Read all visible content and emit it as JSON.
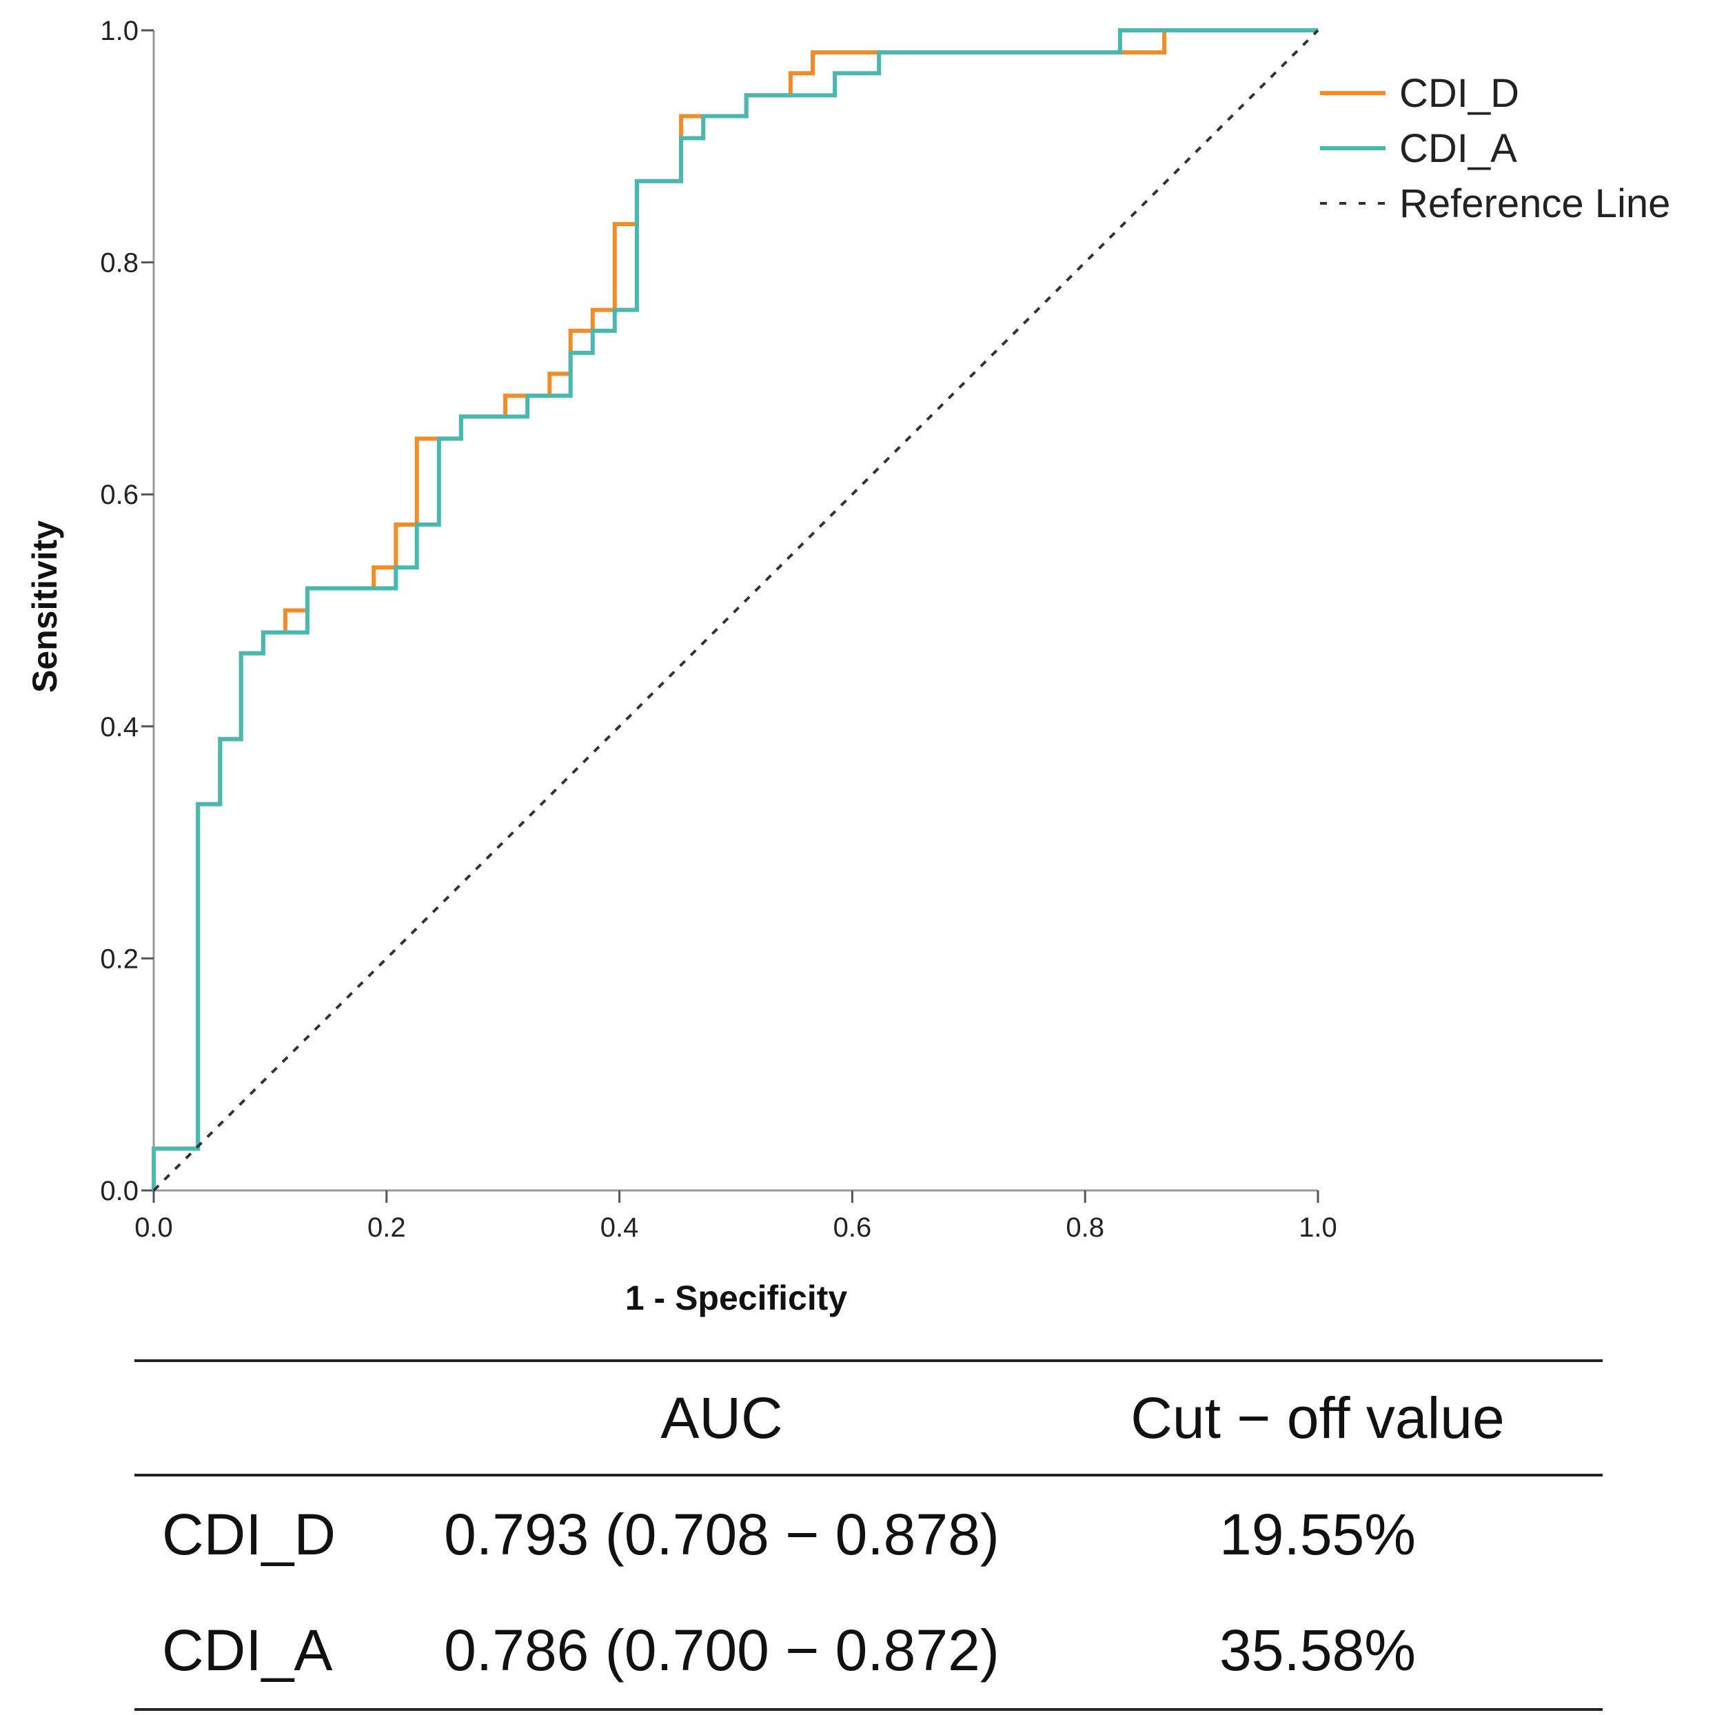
{
  "chart_data": {
    "type": "line",
    "title": "",
    "xlabel": "1 - Specificity",
    "ylabel": "Sensitivity",
    "xlim": [
      0,
      1
    ],
    "ylim": [
      0,
      1
    ],
    "xticks": [
      "0.0",
      "0.2",
      "0.4",
      "0.6",
      "0.8",
      "1.0"
    ],
    "yticks": [
      "0.0",
      "0.2",
      "0.4",
      "0.6",
      "0.8",
      "1.0"
    ],
    "grid": false,
    "legend_position": "top-right",
    "series": [
      {
        "name": "CDI_D",
        "color": "#f28c28",
        "x": [
          0,
          0,
          0.038,
          0.038,
          0.057,
          0.057,
          0.075,
          0.075,
          0.094,
          0.094,
          0.113,
          0.113,
          0.132,
          0.132,
          0.189,
          0.189,
          0.208,
          0.208,
          0.226,
          0.226,
          0.245,
          0.245,
          0.264,
          0.264,
          0.302,
          0.302,
          0.34,
          0.34,
          0.358,
          0.358,
          0.377,
          0.377,
          0.396,
          0.396,
          0.415,
          0.415,
          0.453,
          0.453,
          0.509,
          0.509,
          0.547,
          0.547,
          0.566,
          0.566,
          0.868,
          0.868,
          1.0
        ],
        "y": [
          0,
          0.036,
          0.036,
          0.333,
          0.333,
          0.389,
          0.389,
          0.463,
          0.463,
          0.481,
          0.481,
          0.5,
          0.5,
          0.519,
          0.519,
          0.537,
          0.537,
          0.574,
          0.574,
          0.648,
          0.648,
          0.648,
          0.648,
          0.667,
          0.667,
          0.685,
          0.685,
          0.704,
          0.704,
          0.741,
          0.741,
          0.759,
          0.759,
          0.833,
          0.833,
          0.87,
          0.87,
          0.926,
          0.926,
          0.944,
          0.944,
          0.963,
          0.963,
          0.981,
          0.981,
          1.0,
          1.0
        ]
      },
      {
        "name": "CDI_A",
        "color": "#48b8b0",
        "x": [
          0,
          0,
          0.038,
          0.038,
          0.057,
          0.057,
          0.075,
          0.075,
          0.094,
          0.094,
          0.132,
          0.132,
          0.208,
          0.208,
          0.226,
          0.226,
          0.245,
          0.245,
          0.264,
          0.264,
          0.321,
          0.321,
          0.358,
          0.358,
          0.377,
          0.377,
          0.396,
          0.396,
          0.415,
          0.415,
          0.453,
          0.453,
          0.472,
          0.472,
          0.509,
          0.509,
          0.585,
          0.585,
          0.623,
          0.623,
          0.83,
          0.83,
          1.0
        ],
        "y": [
          0,
          0.036,
          0.036,
          0.333,
          0.333,
          0.389,
          0.389,
          0.463,
          0.463,
          0.481,
          0.481,
          0.519,
          0.519,
          0.537,
          0.537,
          0.574,
          0.574,
          0.648,
          0.648,
          0.667,
          0.667,
          0.685,
          0.685,
          0.722,
          0.722,
          0.741,
          0.741,
          0.759,
          0.759,
          0.87,
          0.87,
          0.907,
          0.907,
          0.926,
          0.926,
          0.944,
          0.944,
          0.963,
          0.963,
          0.981,
          0.981,
          1.0,
          1.0
        ]
      },
      {
        "name": "Reference Line",
        "color": "#333333",
        "style": "dotted",
        "x": [
          0,
          1
        ],
        "y": [
          0,
          1
        ]
      }
    ]
  },
  "table": {
    "headers": [
      "",
      "AUC",
      "Cut − off value"
    ],
    "rows": [
      {
        "name": "CDI_D",
        "auc": "0.793 (0.708 − 0.878)",
        "cutoff": "19.55%"
      },
      {
        "name": "CDI_A",
        "auc": "0.786 (0.700 − 0.872)",
        "cutoff": "35.58%"
      }
    ]
  }
}
